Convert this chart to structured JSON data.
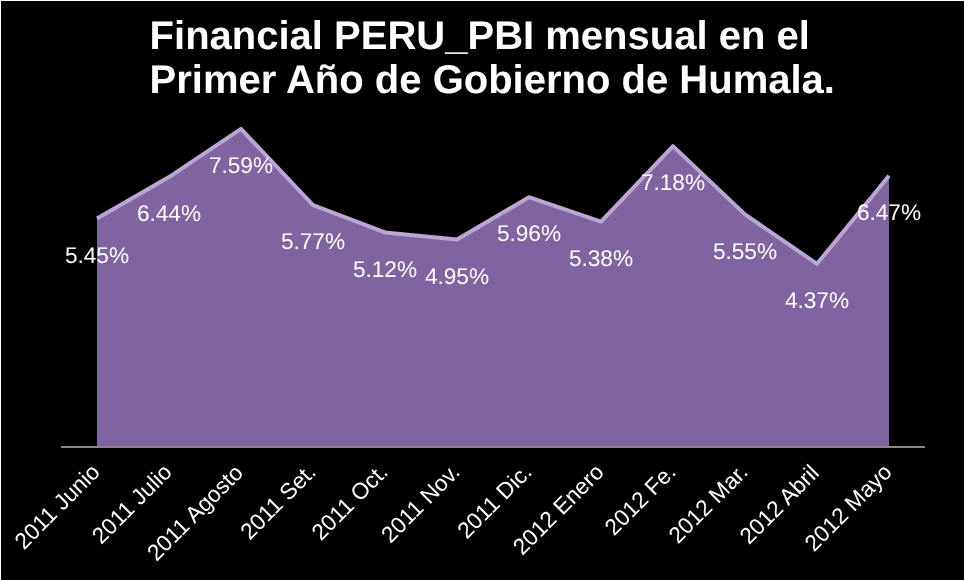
{
  "chart_data": {
    "type": "area",
    "title": "Financial PERU_PBI mensual en el\nPrimer Año de Gobierno de Humala.",
    "categories": [
      "2011 Junio",
      "2011 Julio",
      "2011 Agosto",
      "2011 Set.",
      "2011 Oct.",
      "2011 Nov.",
      "2011 Dic.",
      "2012 Enero",
      "2012 Fe.",
      "2012 Mar.",
      "2012 Abril",
      "2012 Mayo"
    ],
    "values": [
      5.45,
      6.44,
      7.59,
      5.77,
      5.12,
      4.95,
      5.96,
      5.38,
      7.18,
      5.55,
      4.37,
      6.47
    ],
    "value_labels": [
      "5.45%",
      "6.44%",
      "7.59%",
      "5.77%",
      "5.12%",
      "4.95%",
      "5.96%",
      "5.38%",
      "7.18%",
      "5.55%",
      "4.37%",
      "6.47%"
    ],
    "color": "#8064a2",
    "grid": false
  }
}
